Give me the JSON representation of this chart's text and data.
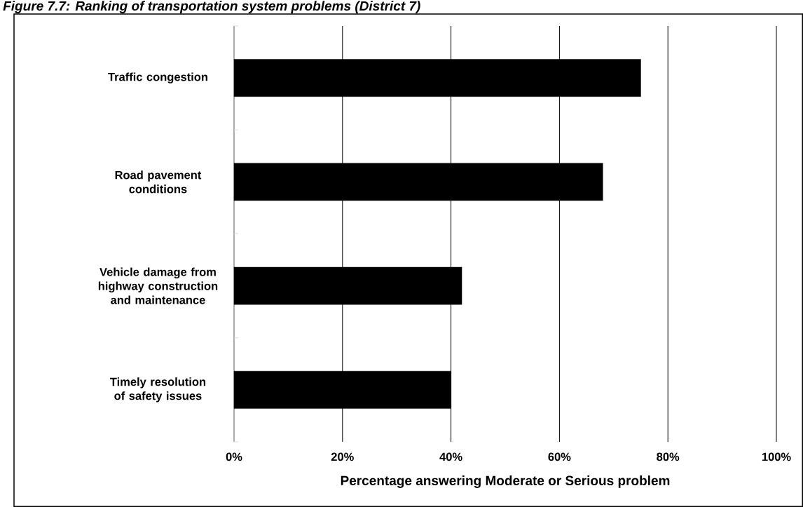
{
  "chart_data": {
    "type": "bar",
    "orientation": "horizontal",
    "title": "Figure 7.7: Ranking of transportation system problems (District 7)",
    "xlabel": "Percentage answering Moderate or Serious problem",
    "categories": [
      "Traffic congestion",
      "Road pavement conditions",
      "Vehicle damage from highway construction and maintenance",
      "Timely resolution of safety issues"
    ],
    "values": [
      75,
      68,
      42,
      40
    ],
    "color": "#000000",
    "xlim": [
      0,
      100
    ],
    "xticks": [
      {
        "value": 0,
        "label": "0%"
      },
      {
        "value": 20,
        "label": "20%"
      },
      {
        "value": 40,
        "label": "40%"
      },
      {
        "value": 60,
        "label": "60%"
      },
      {
        "value": 80,
        "label": "80%"
      },
      {
        "value": 100,
        "label": "100%"
      }
    ],
    "grid": "x"
  }
}
